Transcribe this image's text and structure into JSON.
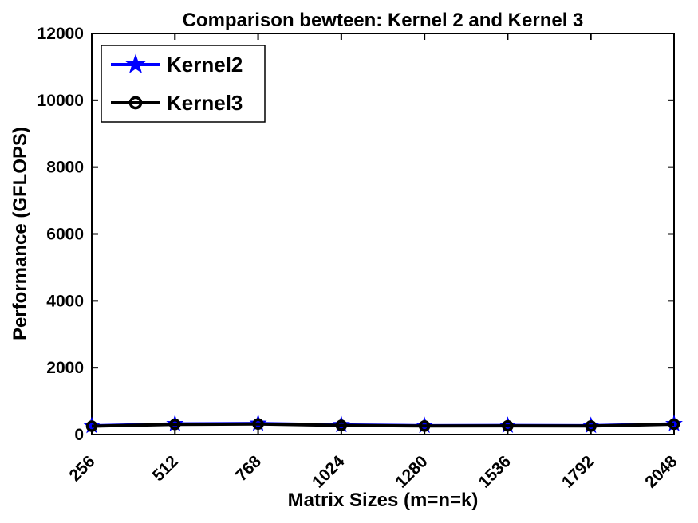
{
  "chart_data": {
    "type": "line",
    "title": "Comparison bewteen: Kernel 2 and Kernel 3",
    "xlabel": "Matrix Sizes (m=n=k)",
    "ylabel": "Performance (GFLOPS)",
    "x": [
      256,
      512,
      768,
      1024,
      1280,
      1536,
      1792,
      2048
    ],
    "xticks": [
      256,
      512,
      768,
      1024,
      1280,
      1536,
      1792,
      2048
    ],
    "xtick_rotation": 45,
    "ylim": [
      0,
      12000
    ],
    "yticks": [
      0,
      2000,
      4000,
      6000,
      8000,
      10000,
      12000
    ],
    "grid": false,
    "background": "#ffffff",
    "axis_color": "#000000",
    "legend_position": "top-left",
    "series": [
      {
        "name": "Kernel2",
        "color": "#0000ff",
        "marker": "pentagram",
        "values": [
          260,
          320,
          330,
          290,
          265,
          270,
          265,
          320
        ]
      },
      {
        "name": "Kernel3",
        "color": "#000000",
        "marker": "circle",
        "values": [
          250,
          305,
          315,
          275,
          255,
          260,
          255,
          310
        ]
      }
    ]
  }
}
